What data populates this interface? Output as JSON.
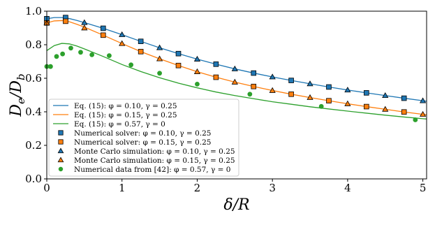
{
  "chart_data": {
    "type": "line",
    "xlabel": "δ/R",
    "ylabel": "D_e/D_b",
    "ylabel_parts": {
      "num": "D",
      "num_sub": "e",
      "den": "D",
      "den_sub": "b"
    },
    "xlim": [
      0,
      5.05
    ],
    "ylim": [
      0.0,
      1.0
    ],
    "xticks": [
      0,
      1,
      2,
      3,
      4,
      5
    ],
    "yticks": [
      0.0,
      0.2,
      0.4,
      0.6,
      0.8,
      1.0
    ],
    "xtick_labels": [
      "0",
      "1",
      "2",
      "3",
      "4",
      "5"
    ],
    "ytick_labels": [
      "0.0",
      "0.2",
      "0.4",
      "0.6",
      "0.8",
      "1.0"
    ],
    "grid": false,
    "legend_position": "lower-left",
    "colors": {
      "blue": "#1f77b4",
      "orange": "#ff7f0e",
      "green": "#2ca02c"
    },
    "series": [
      {
        "name": "Eq. (15): φ = 0.10, γ = 0.25",
        "kind": "line",
        "color": "#1f77b4",
        "x": [
          0,
          0.1,
          0.2,
          0.3,
          0.4,
          0.5,
          0.75,
          1.0,
          1.25,
          1.5,
          1.75,
          2.0,
          2.25,
          2.5,
          2.75,
          3.0,
          3.25,
          3.5,
          3.75,
          4.0,
          4.25,
          4.5,
          4.75,
          5.0,
          5.05
        ],
        "y": [
          0.955,
          0.962,
          0.962,
          0.956,
          0.945,
          0.932,
          0.898,
          0.86,
          0.82,
          0.782,
          0.747,
          0.714,
          0.684,
          0.656,
          0.631,
          0.608,
          0.587,
          0.567,
          0.548,
          0.53,
          0.513,
          0.497,
          0.481,
          0.466,
          0.463
        ]
      },
      {
        "name": "Eq. (15): φ = 0.15, γ = 0.25",
        "kind": "line",
        "color": "#ff7f0e",
        "x": [
          0,
          0.1,
          0.2,
          0.3,
          0.4,
          0.5,
          0.75,
          1.0,
          1.25,
          1.5,
          1.75,
          2.0,
          2.25,
          2.5,
          2.75,
          3.0,
          3.25,
          3.5,
          3.75,
          4.0,
          4.25,
          4.5,
          4.75,
          5.0,
          5.05
        ],
        "y": [
          0.93,
          0.942,
          0.944,
          0.937,
          0.922,
          0.905,
          0.857,
          0.807,
          0.759,
          0.716,
          0.676,
          0.639,
          0.606,
          0.577,
          0.551,
          0.527,
          0.505,
          0.485,
          0.466,
          0.448,
          0.431,
          0.415,
          0.399,
          0.385,
          0.382
        ]
      },
      {
        "name": "Eq. (15): φ = 0.57, γ = 0",
        "kind": "line",
        "color": "#2ca02c",
        "x": [
          0,
          0.1,
          0.2,
          0.3,
          0.4,
          0.5,
          0.75,
          1.0,
          1.25,
          1.5,
          1.75,
          2.0,
          2.25,
          2.5,
          2.75,
          3.0,
          3.25,
          3.5,
          3.75,
          4.0,
          4.25,
          4.5,
          4.75,
          5.0,
          5.05
        ],
        "y": [
          0.765,
          0.795,
          0.808,
          0.805,
          0.792,
          0.775,
          0.73,
          0.682,
          0.64,
          0.603,
          0.571,
          0.543,
          0.518,
          0.497,
          0.478,
          0.46,
          0.445,
          0.43,
          0.417,
          0.404,
          0.392,
          0.38,
          0.369,
          0.359,
          0.357
        ]
      },
      {
        "name": "Numerical solver: φ = 0.10, γ = 0.25",
        "kind": "scatter",
        "marker": "square",
        "color": "#1f77b4",
        "x": [
          0,
          0.25,
          0.75,
          1.25,
          1.75,
          2.25,
          2.75,
          3.25,
          3.75,
          4.25,
          4.75
        ],
        "y": [
          0.955,
          0.962,
          0.898,
          0.82,
          0.747,
          0.684,
          0.631,
          0.587,
          0.548,
          0.513,
          0.481
        ]
      },
      {
        "name": "Numerical solver: φ = 0.15, γ = 0.25",
        "kind": "scatter",
        "marker": "square",
        "color": "#ff7f0e",
        "x": [
          0,
          0.25,
          0.75,
          1.25,
          1.75,
          2.25,
          2.75,
          3.25,
          3.75,
          4.25,
          4.75
        ],
        "y": [
          0.93,
          0.94,
          0.857,
          0.759,
          0.676,
          0.606,
          0.551,
          0.505,
          0.466,
          0.431,
          0.399
        ]
      },
      {
        "name": "Monte Carlo simulation: φ = 0.10, γ = 0.25",
        "kind": "scatter",
        "marker": "triangle",
        "color": "#1f77b4",
        "x": [
          0.5,
          1.0,
          1.5,
          2.0,
          2.5,
          3.0,
          3.5,
          4.0,
          4.5,
          5.0
        ],
        "y": [
          0.932,
          0.86,
          0.782,
          0.714,
          0.656,
          0.608,
          0.567,
          0.53,
          0.497,
          0.466
        ]
      },
      {
        "name": "Monte Carlo simulation: φ = 0.15, γ = 0.25",
        "kind": "scatter",
        "marker": "triangle",
        "color": "#ff7f0e",
        "x": [
          0,
          0.5,
          1.0,
          1.5,
          2.0,
          2.5,
          3.0,
          3.5,
          4.0,
          4.5,
          5.0
        ],
        "y": [
          0.93,
          0.9,
          0.807,
          0.716,
          0.639,
          0.577,
          0.527,
          0.485,
          0.448,
          0.415,
          0.385
        ]
      },
      {
        "name": "Numerical data from [42]: φ = 0.57, γ = 0",
        "kind": "scatter",
        "marker": "circle",
        "color": "#2ca02c",
        "x": [
          0,
          0.05,
          0.13,
          0.21,
          0.32,
          0.45,
          0.6,
          0.83,
          1.12,
          1.5,
          2.0,
          2.7,
          3.65,
          4.9
        ],
        "y": [
          0.67,
          0.67,
          0.73,
          0.745,
          0.78,
          0.755,
          0.74,
          0.735,
          0.68,
          0.63,
          0.565,
          0.505,
          0.432,
          0.352
        ]
      }
    ]
  }
}
